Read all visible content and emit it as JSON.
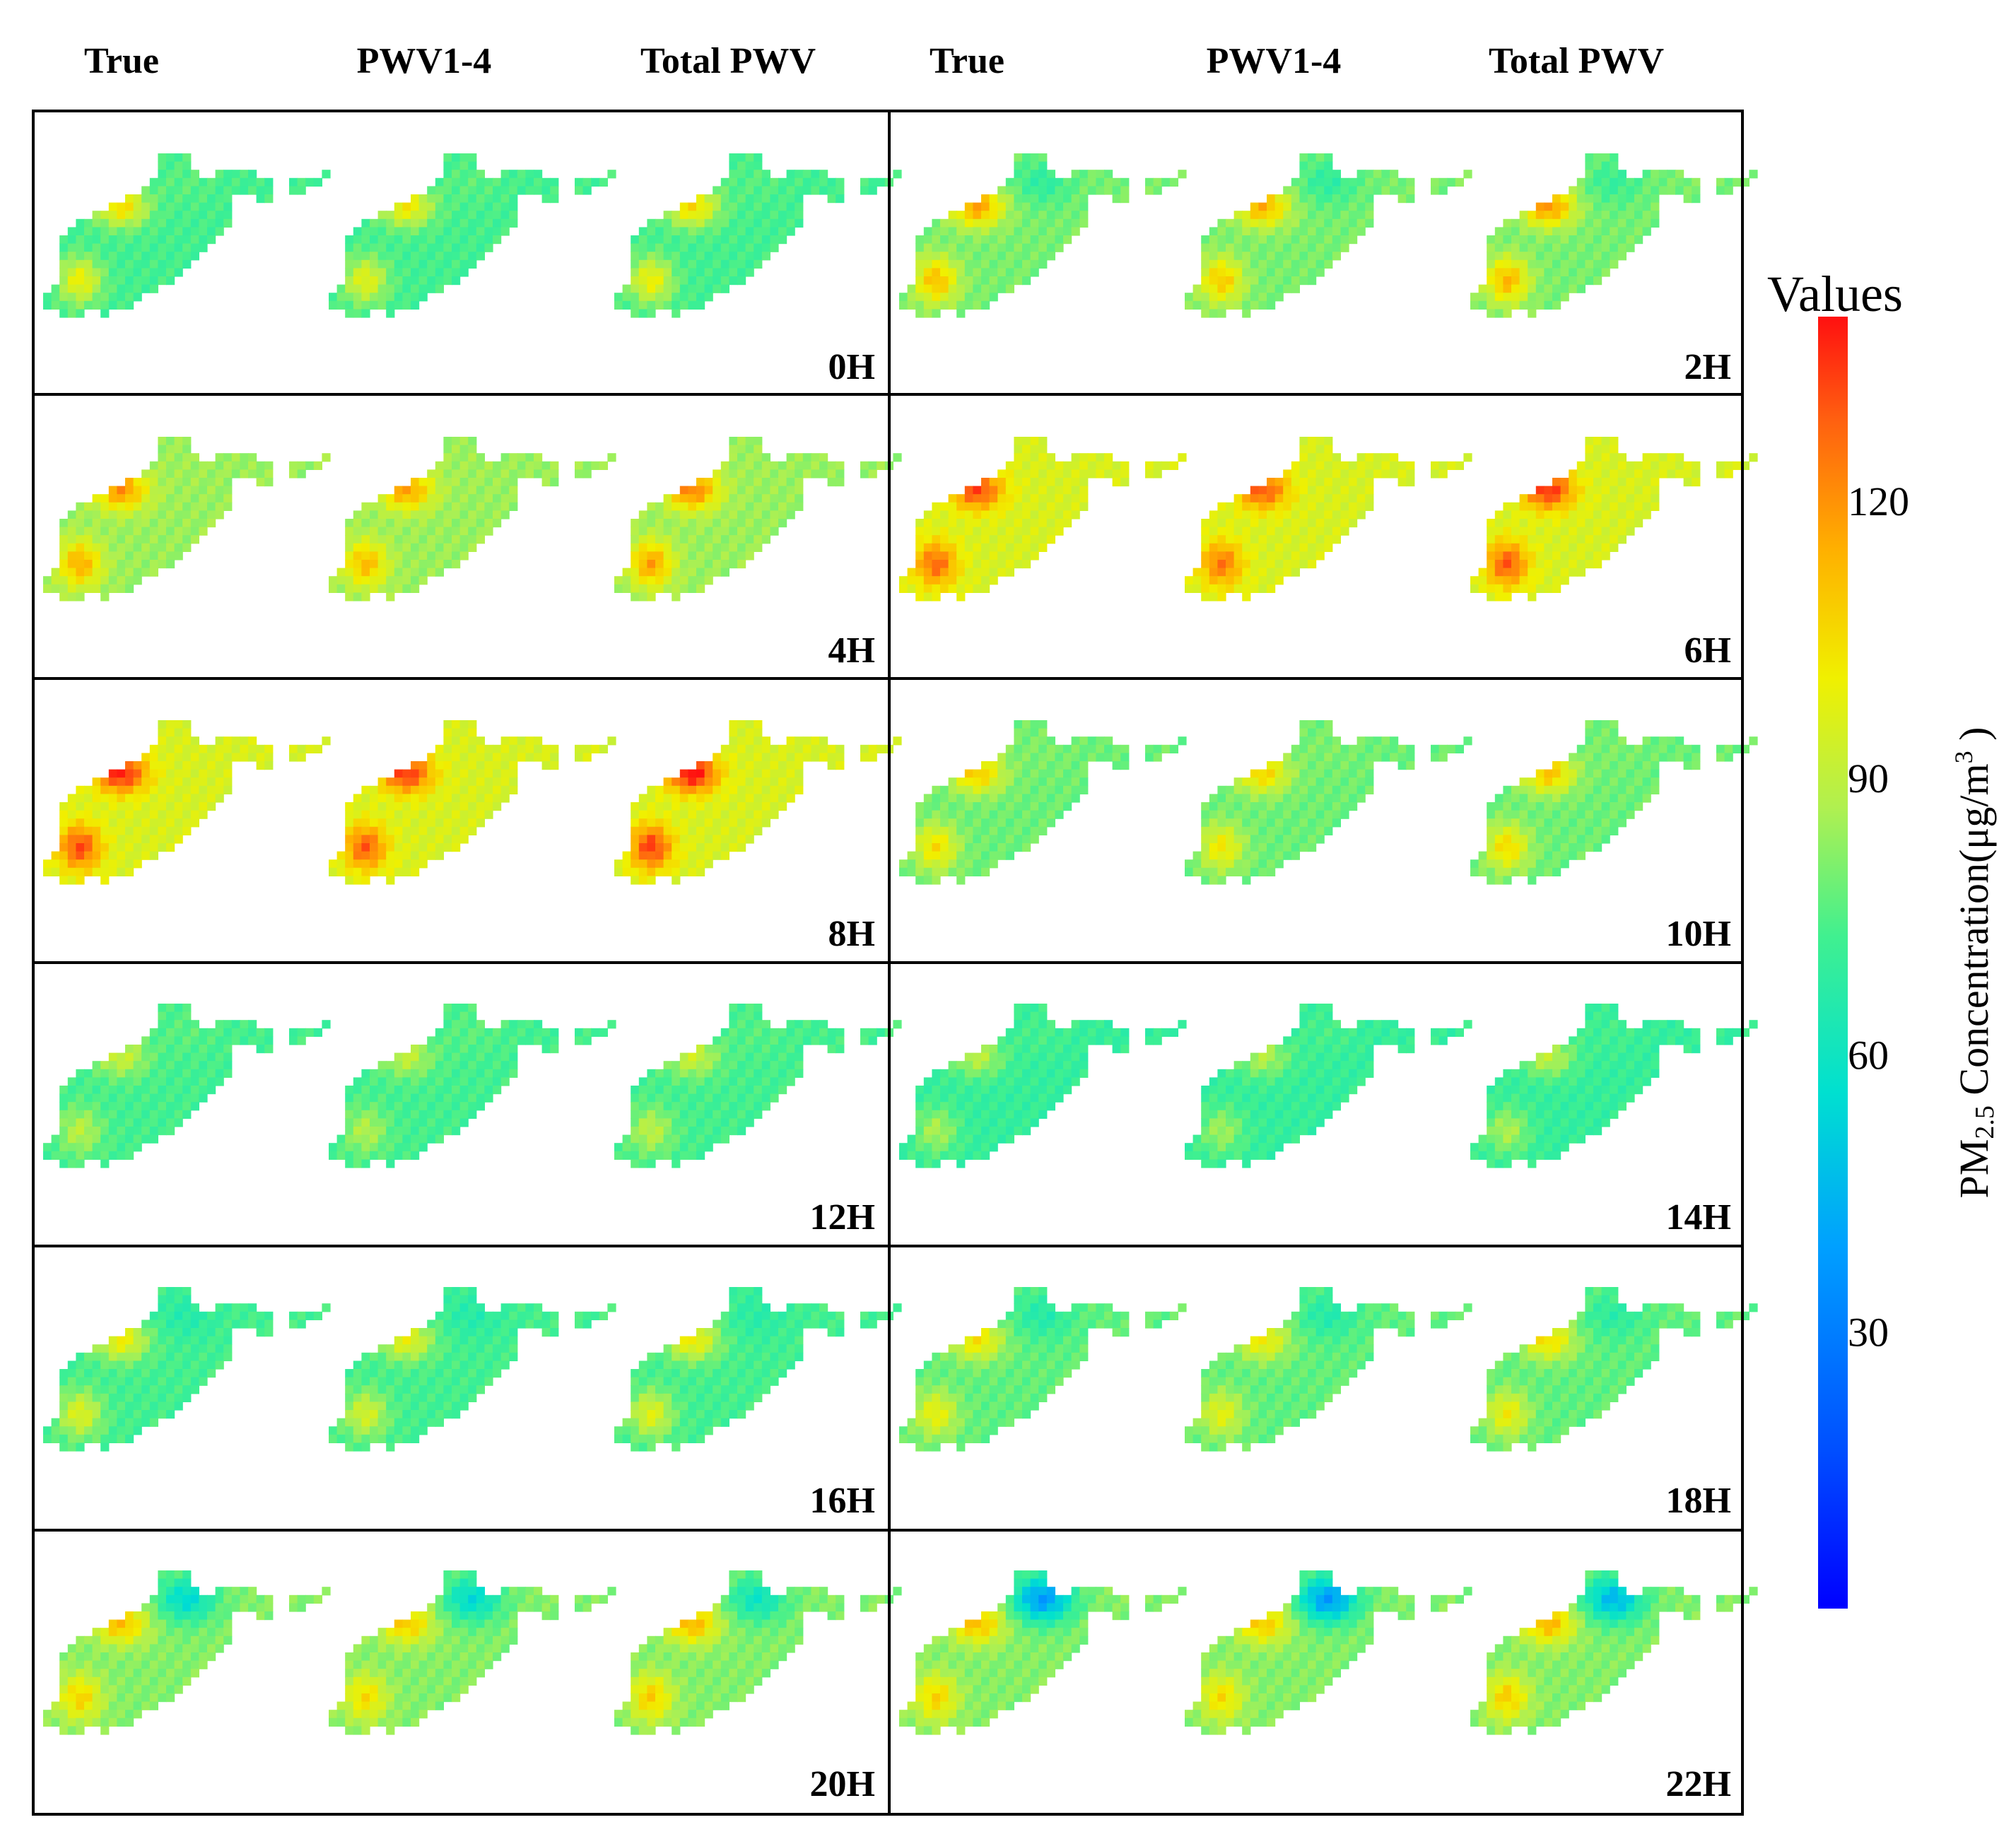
{
  "chart_data": {
    "type": "heatmap",
    "title": "",
    "column_headers": [
      "True",
      "PWV1-4",
      "Total PWV",
      "True",
      "PWV1-4",
      "Total PWV"
    ],
    "panels": [
      {
        "label": "0H",
        "level": 0.52,
        "hot": 0.75,
        "cool": 0.12,
        "totalBoost": 0.02
      },
      {
        "label": "2H",
        "level": 0.57,
        "hot": 0.84,
        "cool": 0.38,
        "totalBoost": 0.05
      },
      {
        "label": "4H",
        "level": 0.6,
        "hot": 0.86,
        "cool": 0.12,
        "totalBoost": 0.08
      },
      {
        "label": "6H",
        "level": 0.68,
        "hot": 0.95,
        "cool": 0.05,
        "totalBoost": 0.08
      },
      {
        "label": "8H",
        "level": 0.68,
        "hot": 0.99,
        "cool": 0.05,
        "totalBoost": 0.06
      },
      {
        "label": "10H",
        "level": 0.56,
        "hot": 0.78,
        "cool": 0.12,
        "totalBoost": 0.05
      },
      {
        "label": "12H",
        "level": 0.52,
        "hot": 0.66,
        "cool": 0.15,
        "totalBoost": 0.03
      },
      {
        "label": "14H",
        "level": 0.5,
        "hot": 0.64,
        "cool": 0.22,
        "totalBoost": 0.03
      },
      {
        "label": "16H",
        "level": 0.52,
        "hot": 0.72,
        "cool": 0.38,
        "totalBoost": 0.03
      },
      {
        "label": "18H",
        "level": 0.55,
        "hot": 0.74,
        "cool": 0.4,
        "totalBoost": 0.05
      },
      {
        "label": "20H",
        "level": 0.58,
        "hot": 0.8,
        "cool": 0.5,
        "totalBoost": 0.05
      },
      {
        "label": "22H",
        "level": 0.58,
        "hot": 0.8,
        "cool": 0.7,
        "totalBoost": 0.05
      }
    ],
    "colorbar": {
      "title": "Values",
      "label_main": "PM",
      "label_sub": "2.5",
      "label_rest": " Concentration(μg/m",
      "label_sup": "3",
      "label_close": " )",
      "min": 0,
      "max": 140,
      "ticks": [
        30,
        60,
        90,
        120
      ],
      "colorscale": "jet"
    }
  }
}
